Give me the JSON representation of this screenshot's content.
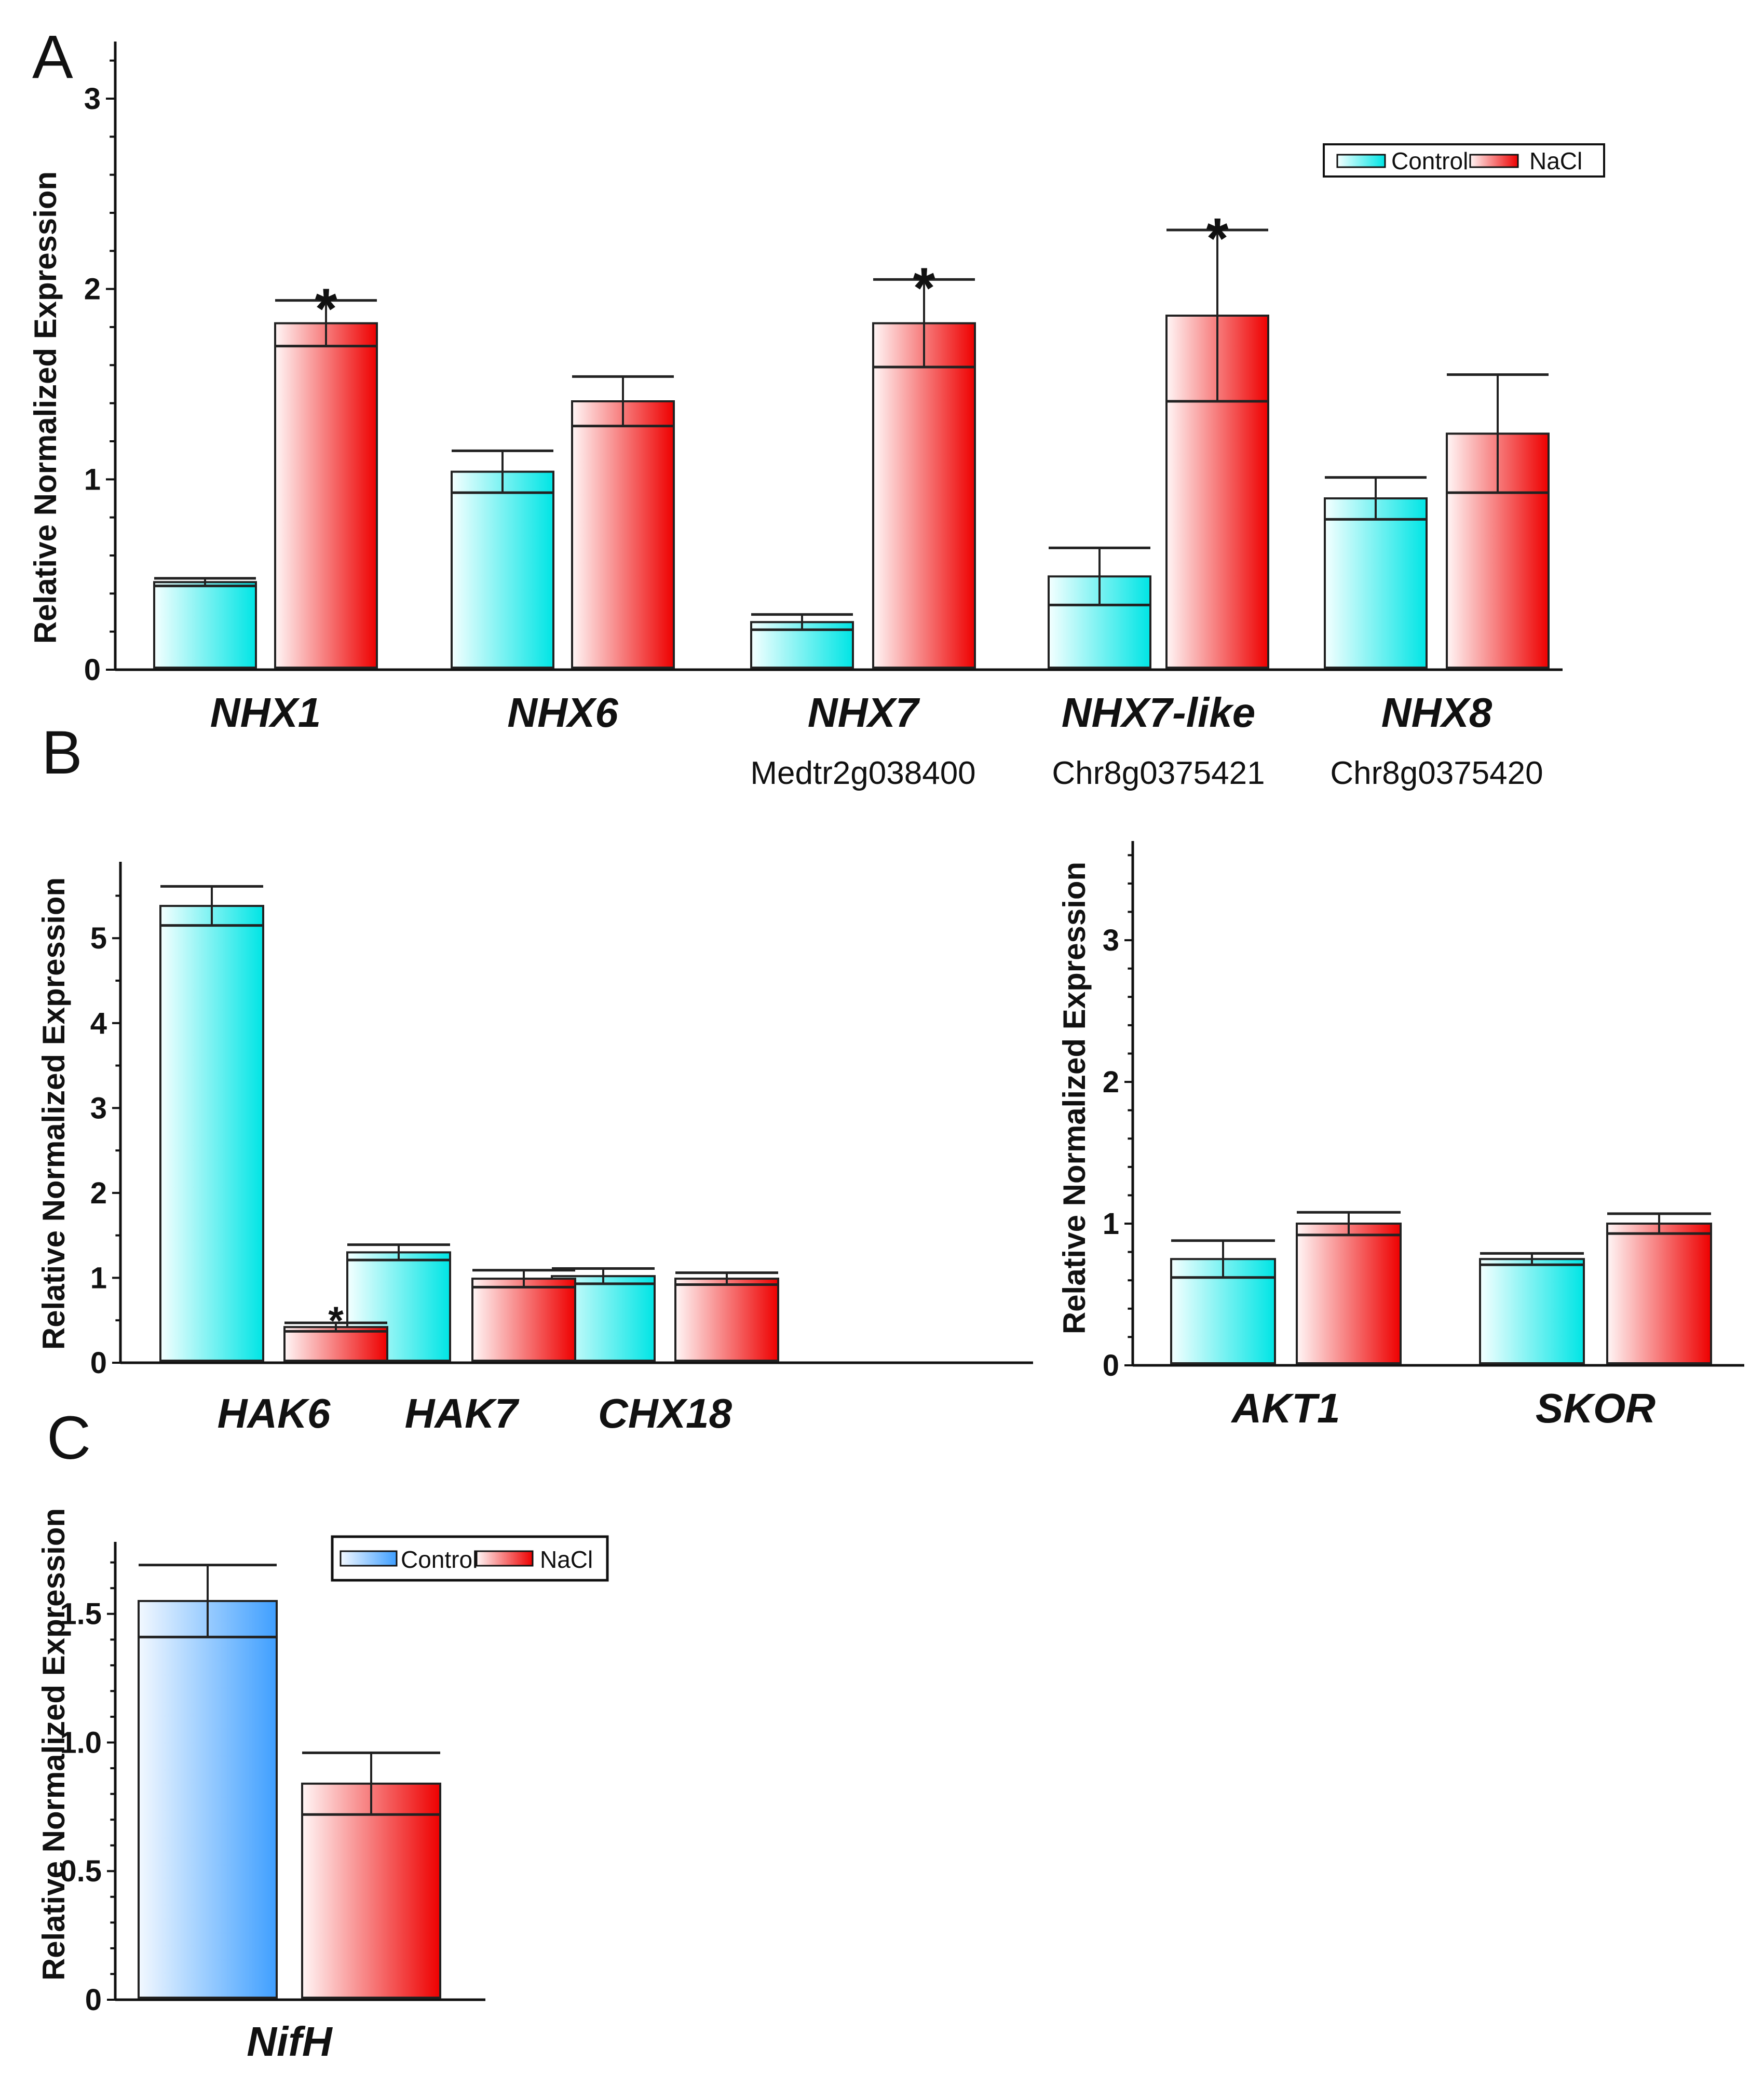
{
  "colors": {
    "control_cyan": "#00e5e5",
    "control_blue": "#3f9fff",
    "nacl_red": "#ee0000",
    "axis": "#111111"
  },
  "panels": {
    "A": "A",
    "B": "B",
    "C": "C"
  },
  "chart_data": [
    {
      "id": "A",
      "type": "bar",
      "title": "",
      "ylabel": "Relative Normalized Expression",
      "ylim": [
        0,
        3.3
      ],
      "yticks": [
        "0",
        "1",
        "2",
        "3"
      ],
      "categories": [
        "NHX1",
        "NHX6",
        "NHX7",
        "NHX7-like",
        "NHX8"
      ],
      "sublabels": [
        "",
        "",
        "Medtr2g038400",
        "Chr8g0375421",
        "Chr8g0375420"
      ],
      "legend": [
        "Control",
        "NaCl"
      ],
      "legend_position": "top-right",
      "series": [
        {
          "name": "Control",
          "values": [
            0.46,
            1.04,
            0.25,
            0.49,
            0.9
          ],
          "errors": [
            0.02,
            0.11,
            0.04,
            0.15,
            0.11
          ]
        },
        {
          "name": "NaCl",
          "values": [
            1.82,
            1.41,
            1.82,
            1.86,
            1.24
          ],
          "errors": [
            0.12,
            0.13,
            0.23,
            0.45,
            0.31
          ]
        }
      ],
      "significance": [
        "*",
        "",
        "*",
        "*",
        ""
      ]
    },
    {
      "id": "B1",
      "type": "bar",
      "title": "",
      "ylabel": "Relative Normalized Expression",
      "ylim": [
        0,
        5.9
      ],
      "yticks": [
        "0",
        "1",
        "2",
        "3",
        "4",
        "5"
      ],
      "categories": [
        "HAK6",
        "HAK7",
        "CHX18"
      ],
      "series": [
        {
          "name": "Control",
          "values": [
            5.38,
            1.3,
            1.02
          ],
          "errors": [
            0.23,
            0.09,
            0.09
          ]
        },
        {
          "name": "NaCl",
          "values": [
            0.42,
            0.99,
            0.99
          ],
          "errors": [
            0.05,
            0.1,
            0.07
          ]
        }
      ],
      "significance": [
        "*",
        "",
        ""
      ]
    },
    {
      "id": "B2",
      "type": "bar",
      "title": "",
      "ylabel": "Relative Normalized Expression",
      "ylim": [
        0,
        3.7
      ],
      "yticks": [
        "0",
        "1",
        "2",
        "3"
      ],
      "categories": [
        "AKT1",
        "SKOR"
      ],
      "series": [
        {
          "name": "Control",
          "values": [
            0.75,
            0.75
          ],
          "errors": [
            0.13,
            0.04
          ]
        },
        {
          "name": "NaCl",
          "values": [
            1.0,
            1.0
          ],
          "errors": [
            0.08,
            0.07
          ]
        }
      ],
      "significance": [
        "",
        ""
      ]
    },
    {
      "id": "C",
      "type": "bar",
      "title": "",
      "ylabel": "Relative Normalized Expression",
      "ylim": [
        0,
        1.78
      ],
      "yticks": [
        "0",
        "0.5",
        "1.0",
        "1.5"
      ],
      "categories": [
        "NifH"
      ],
      "legend": [
        "Control",
        "NaCl"
      ],
      "legend_position": "top-right",
      "series": [
        {
          "name": "Control",
          "values": [
            1.55
          ],
          "errors": [
            0.14
          ]
        },
        {
          "name": "NaCl",
          "values": [
            0.84
          ],
          "errors": [
            0.12
          ]
        }
      ],
      "significance": [
        ""
      ]
    }
  ]
}
